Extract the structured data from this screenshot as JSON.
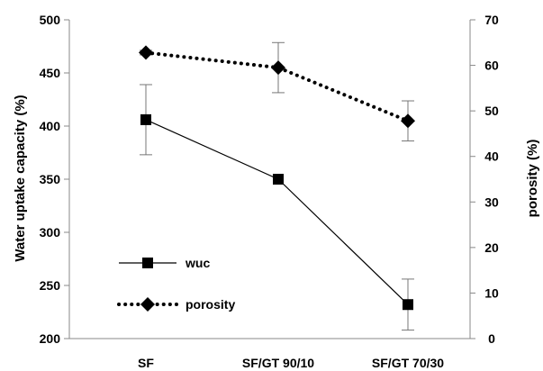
{
  "chart_data": {
    "type": "line",
    "categories": [
      "SF",
      "SF/GT 90/10",
      "SF/GT 70/30"
    ],
    "left_axis": {
      "label": "Water uptake capacity (%)",
      "range": [
        200,
        500
      ],
      "ticks": [
        "200",
        "250",
        "300",
        "350",
        "400",
        "450",
        "500"
      ]
    },
    "right_axis": {
      "label": "porosity (%)",
      "range": [
        0,
        70
      ],
      "ticks": [
        "0",
        "10",
        "20",
        "30",
        "40",
        "50",
        "60",
        "70"
      ]
    },
    "grid": false,
    "legend_position": "bottom-left",
    "series": [
      {
        "name": "wuc",
        "axis": "left",
        "values": [
          406,
          350,
          232
        ],
        "error": [
          33,
          0,
          24
        ],
        "line_style": "solid",
        "marker": "square",
        "color": "#000000"
      },
      {
        "name": "porosity",
        "axis": "right",
        "values": [
          62.8,
          59.5,
          47.8
        ],
        "error": [
          0.5,
          5.5,
          4.4
        ],
        "line_style": "dotted",
        "marker": "diamond",
        "color": "#000000"
      }
    ]
  }
}
